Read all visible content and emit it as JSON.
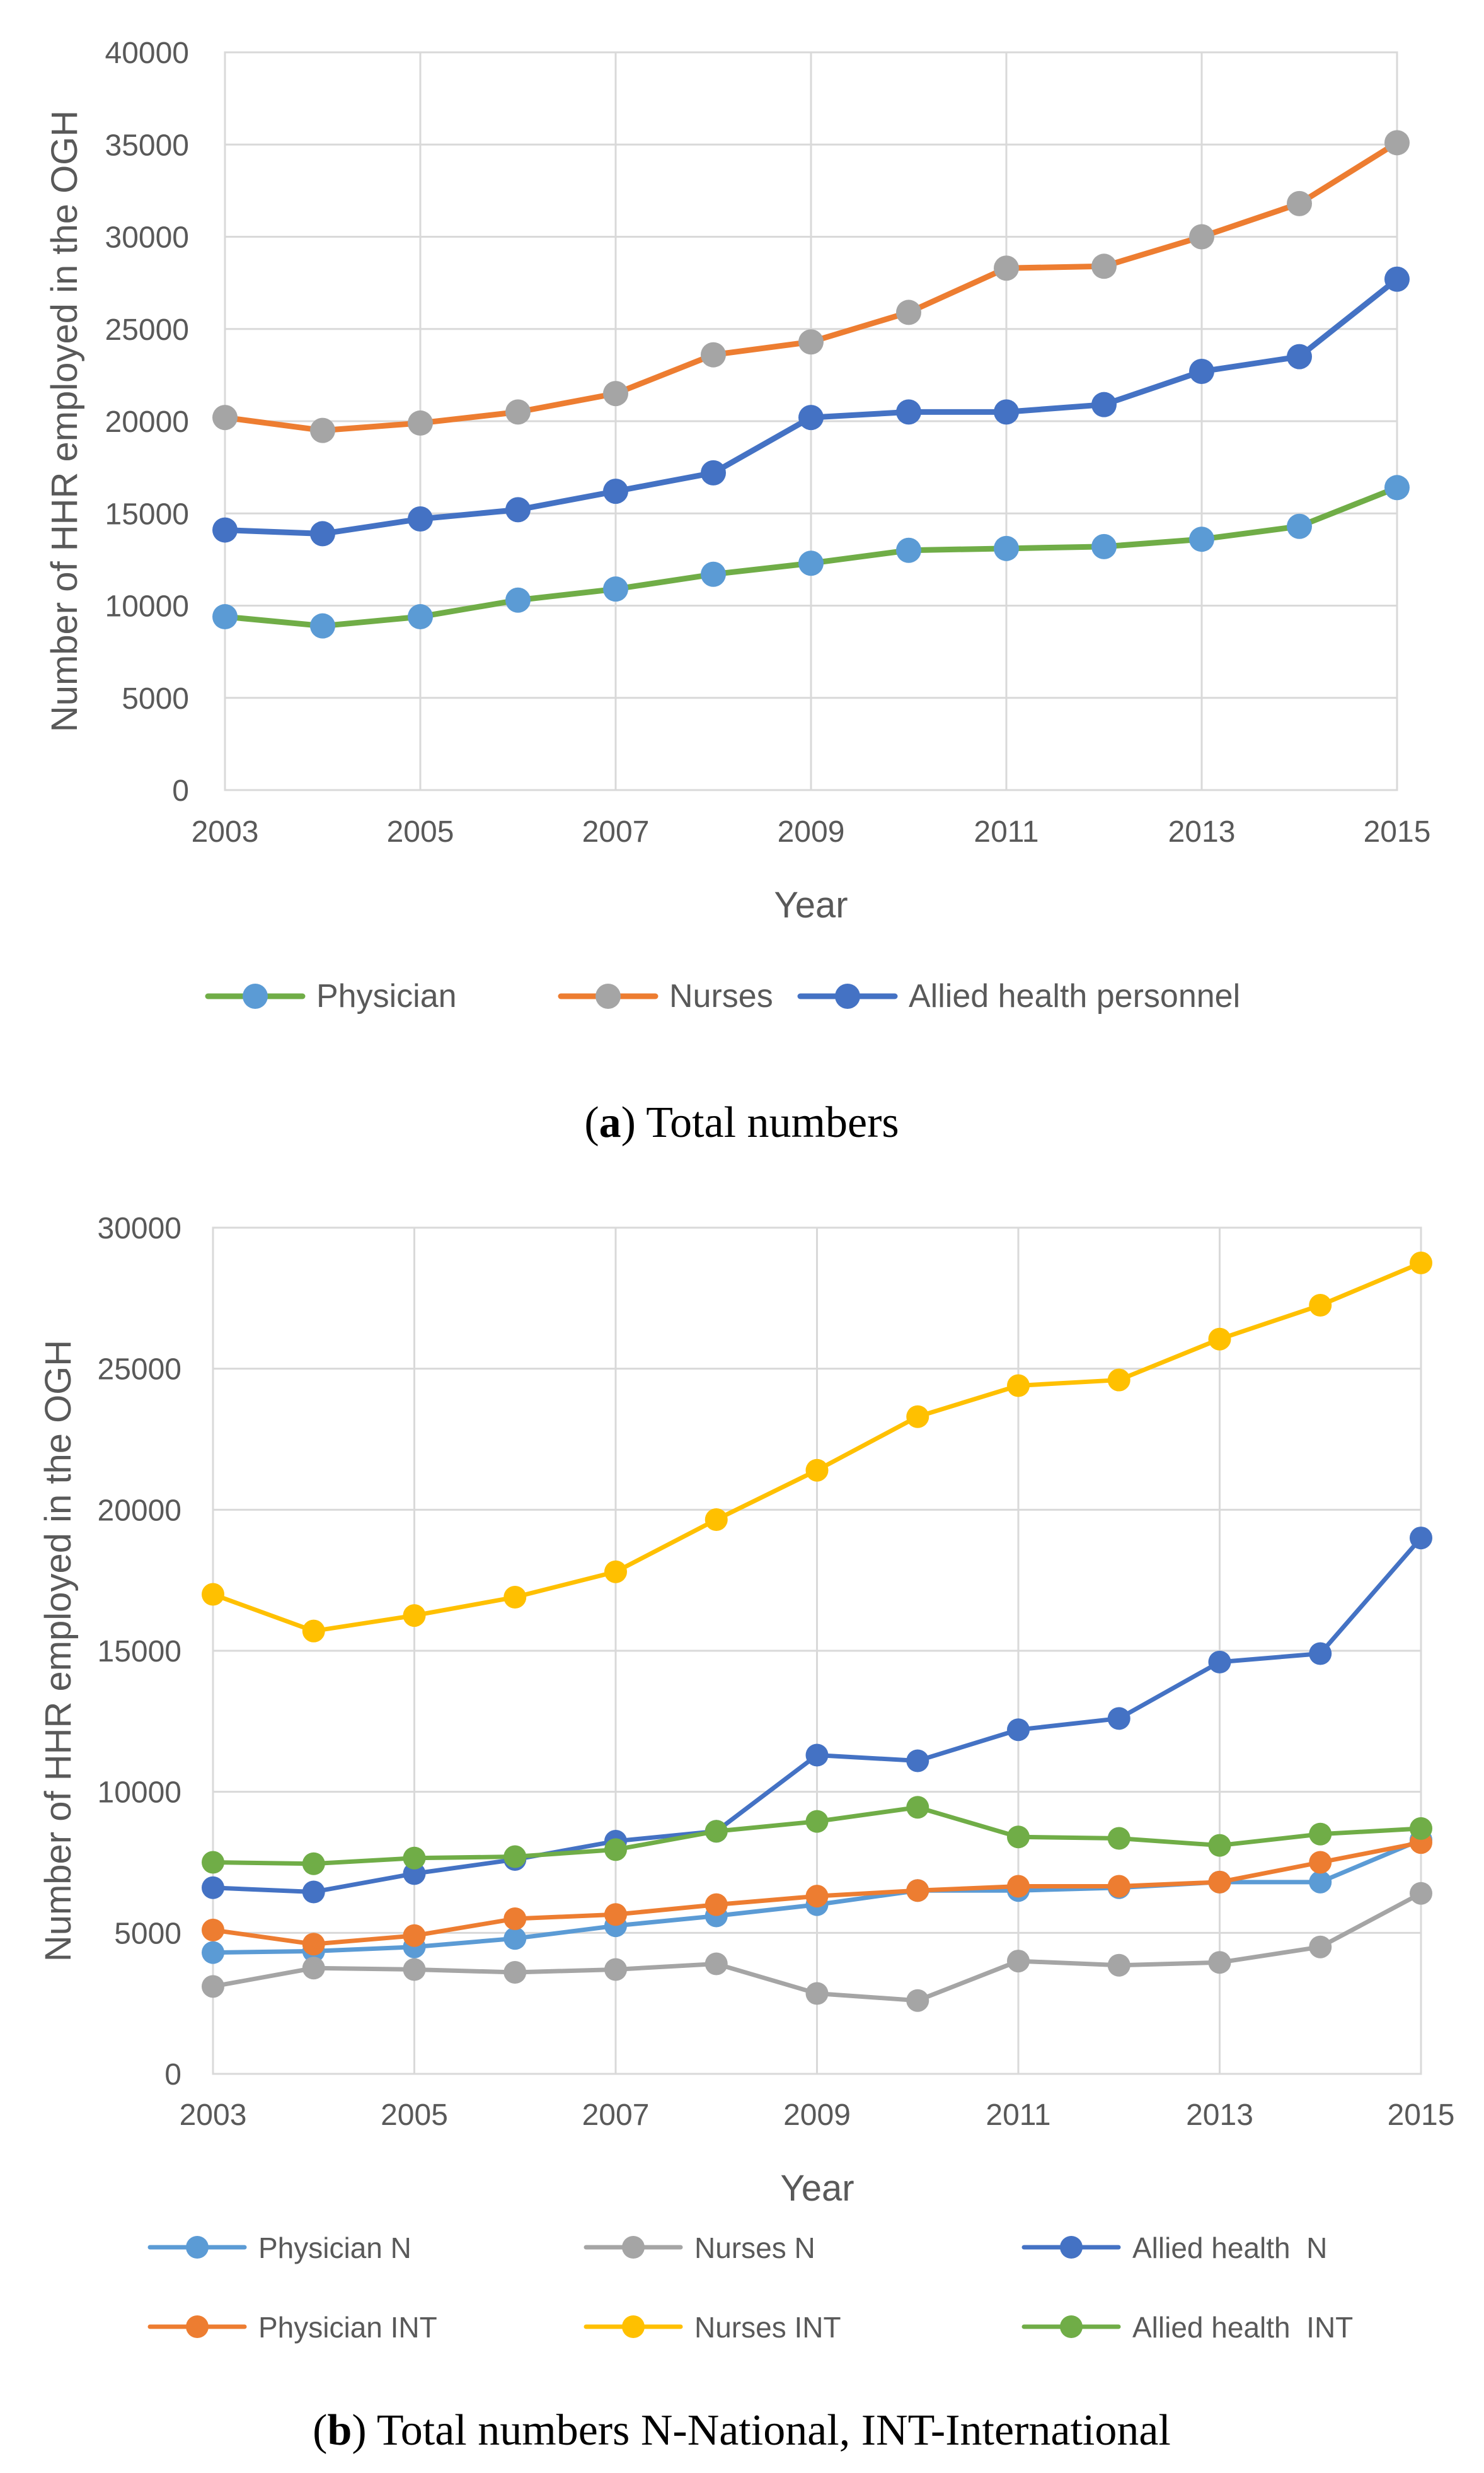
{
  "chart_data": [
    {
      "type": "line",
      "title": "",
      "caption_prefix": "(",
      "caption_label": "a",
      "caption_text": ") Total numbers",
      "xlabel": "Year",
      "ylabel": "Number of HHR employed in the OGH",
      "xlim": [
        2003,
        2015
      ],
      "ylim": [
        0,
        40000
      ],
      "x_ticks": [
        "2003",
        "2005",
        "2007",
        "2009",
        "2011",
        "2013",
        "2015"
      ],
      "y_ticks": [
        "0",
        "5000",
        "10000",
        "15000",
        "20000",
        "25000",
        "30000",
        "35000",
        "40000"
      ],
      "x": [
        2003,
        2004,
        2005,
        2006,
        2007,
        2008,
        2009,
        2010,
        2011,
        2012,
        2013,
        2014,
        2015
      ],
      "grid": true,
      "legend_position": "bottom",
      "series": [
        {
          "name": "Physician",
          "line_color": "#70ad47",
          "marker_color": "#5b9bd5",
          "values": [
            9400,
            8900,
            9400,
            10300,
            10900,
            11700,
            12300,
            13000,
            13100,
            13200,
            13600,
            14300,
            16400
          ]
        },
        {
          "name": "Nurses",
          "line_color": "#ed7d31",
          "marker_color": "#a5a5a5",
          "values": [
            20200,
            19500,
            19900,
            20500,
            21500,
            23600,
            24300,
            25900,
            28300,
            28400,
            30000,
            31800,
            35100
          ]
        },
        {
          "name": "Allied health personnel",
          "line_color": "#4472c4",
          "marker_color": "#4472c4",
          "values": [
            14100,
            13900,
            14700,
            15200,
            16200,
            17200,
            20200,
            20500,
            20500,
            20900,
            22700,
            23500,
            27700
          ]
        }
      ]
    },
    {
      "type": "line",
      "title": "",
      "caption_prefix": "(",
      "caption_label": "b",
      "caption_text": ") Total numbers N-National, INT-International",
      "xlabel": "Year",
      "ylabel": "Number of HHR employed in the OGH",
      "xlim": [
        2003,
        2015
      ],
      "ylim": [
        0,
        30000
      ],
      "x_ticks": [
        "2003",
        "2005",
        "2007",
        "2009",
        "2011",
        "2013",
        "2015"
      ],
      "y_ticks": [
        "0",
        "5000",
        "10000",
        "15000",
        "20000",
        "25000",
        "30000"
      ],
      "x": [
        2003,
        2004,
        2005,
        2006,
        2007,
        2008,
        2009,
        2010,
        2011,
        2012,
        2013,
        2014,
        2015
      ],
      "grid": true,
      "legend_position": "bottom",
      "series": [
        {
          "name": "Physician N",
          "line_color": "#5b9bd5",
          "marker_color": "#5b9bd5",
          "values": [
            4300,
            4350,
            4500,
            4800,
            5250,
            5600,
            6000,
            6500,
            6500,
            6600,
            6800,
            6800,
            8300
          ]
        },
        {
          "name": "Nurses N",
          "line_color": "#a5a5a5",
          "marker_color": "#a5a5a5",
          "values": [
            3100,
            3750,
            3700,
            3600,
            3700,
            3900,
            2850,
            2600,
            4000,
            3850,
            3950,
            4500,
            6400
          ]
        },
        {
          "name": "Allied health  N",
          "line_color": "#4472c4",
          "marker_color": "#4472c4",
          "values": [
            6600,
            6450,
            7100,
            7600,
            8250,
            8600,
            11300,
            11100,
            12200,
            12600,
            14600,
            14900,
            19000
          ]
        },
        {
          "name": "Physician INT",
          "line_color": "#ed7d31",
          "marker_color": "#ed7d31",
          "values": [
            5100,
            4600,
            4900,
            5500,
            5650,
            6000,
            6300,
            6500,
            6650,
            6650,
            6800,
            7500,
            8200
          ]
        },
        {
          "name": "Nurses INT",
          "line_color": "#ffc000",
          "marker_color": "#ffc000",
          "values": [
            17000,
            15700,
            16250,
            16900,
            17800,
            19650,
            21400,
            23300,
            24400,
            24600,
            26050,
            27250,
            28750
          ]
        },
        {
          "name": "Allied health  INT",
          "line_color": "#70ad47",
          "marker_color": "#70ad47",
          "values": [
            7500,
            7450,
            7650,
            7700,
            7950,
            8600,
            8950,
            9450,
            8400,
            8350,
            8100,
            8500,
            8700
          ]
        }
      ]
    }
  ]
}
